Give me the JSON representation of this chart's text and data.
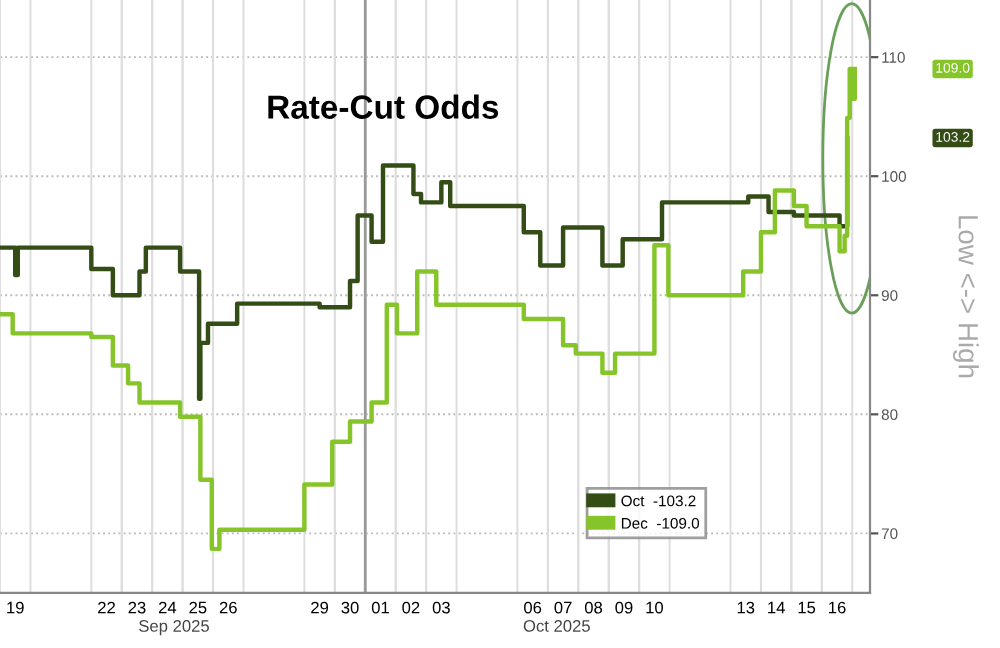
{
  "chart_data": {
    "type": "step",
    "title": "Rate-Cut Odds",
    "ylabel": "Low <-> High",
    "annotations": [
      "Sep 2025",
      "Oct 2025",
      "109.0",
      "103.2"
    ],
    "series": [
      {
        "name": "Oct  -103.2",
        "color": "#344d17",
        "x": [
          "2025-09-19T00:00",
          "2025-09-19T12:00",
          "2025-09-19T14:00",
          "2025-09-22T00:00",
          "2025-09-22T17:00",
          "2025-09-23T14:00",
          "2025-09-23T19:00",
          "2025-09-24T22:00",
          "2025-09-25T13:00",
          "2025-09-25T14:00",
          "2025-09-25T20:00",
          "2025-09-26T19:00",
          "2025-09-29T12:00",
          "2025-09-30T12:00",
          "2025-09-30T18:00",
          "2025-10-01T05:00",
          "2025-10-01T14:00",
          "2025-10-02T14:00",
          "2025-10-02T20:00",
          "2025-10-03T12:00",
          "2025-10-03T19:00",
          "2025-10-06T05:00",
          "2025-10-06T18:00",
          "2025-10-07T12:00",
          "2025-10-08T19:00",
          "2025-10-09T11:00",
          "2025-10-10T18:00",
          "2025-10-13T14:00",
          "2025-10-14T06:00",
          "2025-10-15T02:00",
          "2025-10-16T14:00",
          "2025-10-16T20:00"
        ],
        "values": [
          94,
          91.7,
          94,
          92.2,
          90,
          92,
          94,
          92,
          81.3,
          86,
          87.6,
          89.3,
          89,
          91.2,
          96.7,
          94.5,
          100.9,
          98.5,
          97.8,
          99.5,
          97.5,
          95.3,
          92.5,
          95.7,
          92.5,
          94.7,
          97.8,
          98.3,
          97,
          96.7,
          95.8,
          103.2
        ]
      },
      {
        "name": "Dec  -109.0",
        "color": "#86c52a",
        "x": [
          "2025-09-19T00:00",
          "2025-09-19T10:00",
          "2025-09-22T00:00",
          "2025-09-22T17:00",
          "2025-09-23T05:00",
          "2025-09-23T14:00",
          "2025-09-24T22:00",
          "2025-09-25T14:00",
          "2025-09-25T23:00",
          "2025-09-26T05:00",
          "2025-09-26T19:00",
          "2025-09-29T00:00",
          "2025-09-29T22:00",
          "2025-09-30T12:00",
          "2025-10-01T05:00",
          "2025-10-01T17:00",
          "2025-10-02T01:00",
          "2025-10-02T17:00",
          "2025-10-03T08:00",
          "2025-10-06T05:00",
          "2025-10-07T12:00",
          "2025-10-07T22:00",
          "2025-10-08T19:00",
          "2025-10-09T05:00",
          "2025-10-09T22:00",
          "2025-10-10T12:00",
          "2025-10-10T23:00",
          "2025-10-13T10:00",
          "2025-10-14T00:00",
          "2025-10-14T11:00",
          "2025-10-15T02:00",
          "2025-10-15T12:00",
          "2025-10-16T14:00",
          "2025-10-16T18:00",
          "2025-10-16T20:00",
          "2025-10-16T22:00",
          "2025-10-17T00:00",
          "2025-10-17T02:00"
        ],
        "values": [
          88.4,
          86.8,
          86.5,
          84.1,
          82.6,
          81,
          79.8,
          74.5,
          68.7,
          70.3,
          70.3,
          74.1,
          77.7,
          79.4,
          81,
          89.2,
          86.8,
          92,
          89.2,
          88,
          85.8,
          85.1,
          83.5,
          85.1,
          85.1,
          94.2,
          90,
          92,
          95.3,
          98.8,
          97.5,
          95.8,
          93.7,
          95,
          104.9,
          109,
          106.5,
          109.0
        ]
      }
    ],
    "xlim": [
      "2025-09-19T00:00",
      "2025-10-17T14:00"
    ],
    "xticks": [
      {
        "value": "2025-09-19T12:00",
        "label": "19"
      },
      {
        "value": "2025-09-22T12:00",
        "label": "22"
      },
      {
        "value": "2025-09-23T12:00",
        "label": "23"
      },
      {
        "value": "2025-09-24T12:00",
        "label": "24"
      },
      {
        "value": "2025-09-25T12:00",
        "label": "25"
      },
      {
        "value": "2025-09-26T12:00",
        "label": "26"
      },
      {
        "value": "2025-09-29T12:00",
        "label": "29"
      },
      {
        "value": "2025-09-30T12:00",
        "label": "30"
      },
      {
        "value": "2025-10-01T12:00",
        "label": "01"
      },
      {
        "value": "2025-10-02T12:00",
        "label": "02"
      },
      {
        "value": "2025-10-03T12:00",
        "label": "03"
      },
      {
        "value": "2025-10-06T12:00",
        "label": "06"
      },
      {
        "value": "2025-10-07T12:00",
        "label": "07"
      },
      {
        "value": "2025-10-08T12:00",
        "label": "08"
      },
      {
        "value": "2025-10-09T12:00",
        "label": "09"
      },
      {
        "value": "2025-10-10T12:00",
        "label": "10"
      },
      {
        "value": "2025-10-13T12:00",
        "label": "13"
      },
      {
        "value": "2025-10-14T12:00",
        "label": "14"
      },
      {
        "value": "2025-10-15T12:00",
        "label": "15"
      },
      {
        "value": "2025-10-16T12:00",
        "label": "16"
      }
    ],
    "ylim": [
      65,
      114.8
    ],
    "yticks": [
      70,
      80,
      90,
      100,
      110
    ],
    "ref_lines": [
      {
        "axis": "x",
        "value": "2025-10-01T00:00",
        "label": null,
        "color": "#999999"
      }
    ],
    "grid": true,
    "legend": "bottom right",
    "line_style": "solid",
    "marker": "none"
  }
}
